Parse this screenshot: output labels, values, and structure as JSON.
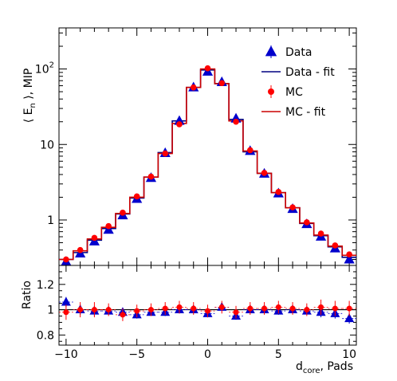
{
  "chart_data": [
    {
      "type": "step-histogram",
      "panel": "main",
      "ylabel_main": "⟨ E",
      "ylabel_sub": "n",
      "ylabel_tail": " ⟩, MIP",
      "yscale": "log",
      "ylim": [
        0.25,
        350
      ],
      "xlim": [
        -10.5,
        10.5
      ],
      "y_tick_labels": [
        {
          "value": 1,
          "base": "1",
          "exp": ""
        },
        {
          "value": 10,
          "base": "10",
          "exp": ""
        },
        {
          "value": 100,
          "base": "10",
          "exp": "2"
        }
      ],
      "x": [
        -10,
        -9,
        -8,
        -7,
        -6,
        -5,
        -4,
        -3,
        -2,
        -1,
        0,
        1,
        2,
        3,
        4,
        5,
        6,
        7,
        8,
        9,
        10
      ],
      "series": [
        {
          "name": "Data",
          "style": "markers",
          "marker": "triangle",
          "color": "#0000cc",
          "values": [
            0.28,
            0.36,
            0.52,
            0.74,
            1.15,
            1.9,
            3.6,
            7.7,
            20.5,
            57,
            92,
            67,
            22,
            8.2,
            4.1,
            2.25,
            1.4,
            0.88,
            0.6,
            0.42,
            0.3
          ]
        },
        {
          "name": "Data - fit",
          "style": "step",
          "color": "#000080",
          "values": [
            0.3,
            0.37,
            0.54,
            0.77,
            1.2,
            1.95,
            3.7,
            7.8,
            20.5,
            57,
            97,
            64,
            21.5,
            8.0,
            4.15,
            2.3,
            1.45,
            0.9,
            0.62,
            0.44,
            0.32
          ]
        },
        {
          "name": "MC",
          "style": "markers",
          "marker": "circle",
          "color": "#ff0000",
          "values": [
            0.3,
            0.4,
            0.58,
            0.83,
            1.25,
            2.05,
            3.75,
            7.6,
            18.5,
            57,
            102,
            65,
            20,
            8.4,
            4.2,
            2.35,
            1.47,
            0.93,
            0.66,
            0.46,
            0.35
          ]
        },
        {
          "name": "MC - fit",
          "style": "step",
          "color": "#cc0000",
          "values": [
            0.3,
            0.39,
            0.56,
            0.8,
            1.22,
            2.0,
            3.7,
            7.6,
            19,
            57,
            100,
            64,
            20.5,
            8.2,
            4.15,
            2.3,
            1.45,
            0.91,
            0.63,
            0.45,
            0.34
          ]
        }
      ],
      "legend_position": "top-right"
    },
    {
      "type": "scatter",
      "panel": "ratio",
      "ylabel": "Ratio",
      "ylim": [
        0.72,
        1.35
      ],
      "xlim": [
        -10.5,
        10.5
      ],
      "y_ticks": [
        0.8,
        1,
        1.2
      ],
      "y_tick_labels": [
        "0.8",
        "1",
        "1.2"
      ],
      "x_ticks": [
        -10,
        -5,
        0,
        5,
        10
      ],
      "x_tick_labels": [
        "−10",
        "−5",
        "0",
        "5",
        "10"
      ],
      "xlabel_main": "d",
      "xlabel_sub": "core",
      "xlabel_tail": ", Pads",
      "reference_line": 1,
      "x": [
        -10,
        -9,
        -8,
        -7,
        -6,
        -5,
        -4,
        -3,
        -2,
        -1,
        0,
        1,
        2,
        3,
        4,
        5,
        6,
        7,
        8,
        9,
        10
      ],
      "series": [
        {
          "name": "Data",
          "marker": "triangle",
          "color": "#0000cc",
          "values": [
            1.06,
            1.0,
            0.99,
            0.99,
            0.98,
            0.96,
            0.98,
            0.98,
            1.0,
            1.0,
            0.97,
            1.02,
            0.95,
            1.0,
            1.0,
            0.99,
            1.0,
            0.99,
            0.98,
            0.97,
            0.93
          ],
          "errors": [
            0.04,
            0.04,
            0.04,
            0.03,
            0.03,
            0.03,
            0.03,
            0.03,
            0.03,
            0.03,
            0.03,
            0.03,
            0.03,
            0.03,
            0.03,
            0.03,
            0.03,
            0.03,
            0.04,
            0.04,
            0.04
          ]
        },
        {
          "name": "MC",
          "marker": "circle",
          "color": "#ff0000",
          "values": [
            0.98,
            1.0,
            1.0,
            1.0,
            0.96,
            0.99,
            1.0,
            1.01,
            1.02,
            1.01,
            0.99,
            1.02,
            0.98,
            1.01,
            1.01,
            1.02,
            1.01,
            1.0,
            1.02,
            1.01,
            1.01
          ],
          "errors": [
            0.06,
            0.06,
            0.06,
            0.05,
            0.05,
            0.05,
            0.05,
            0.05,
            0.05,
            0.05,
            0.05,
            0.05,
            0.05,
            0.05,
            0.05,
            0.05,
            0.05,
            0.05,
            0.06,
            0.06,
            0.06
          ]
        }
      ]
    }
  ]
}
